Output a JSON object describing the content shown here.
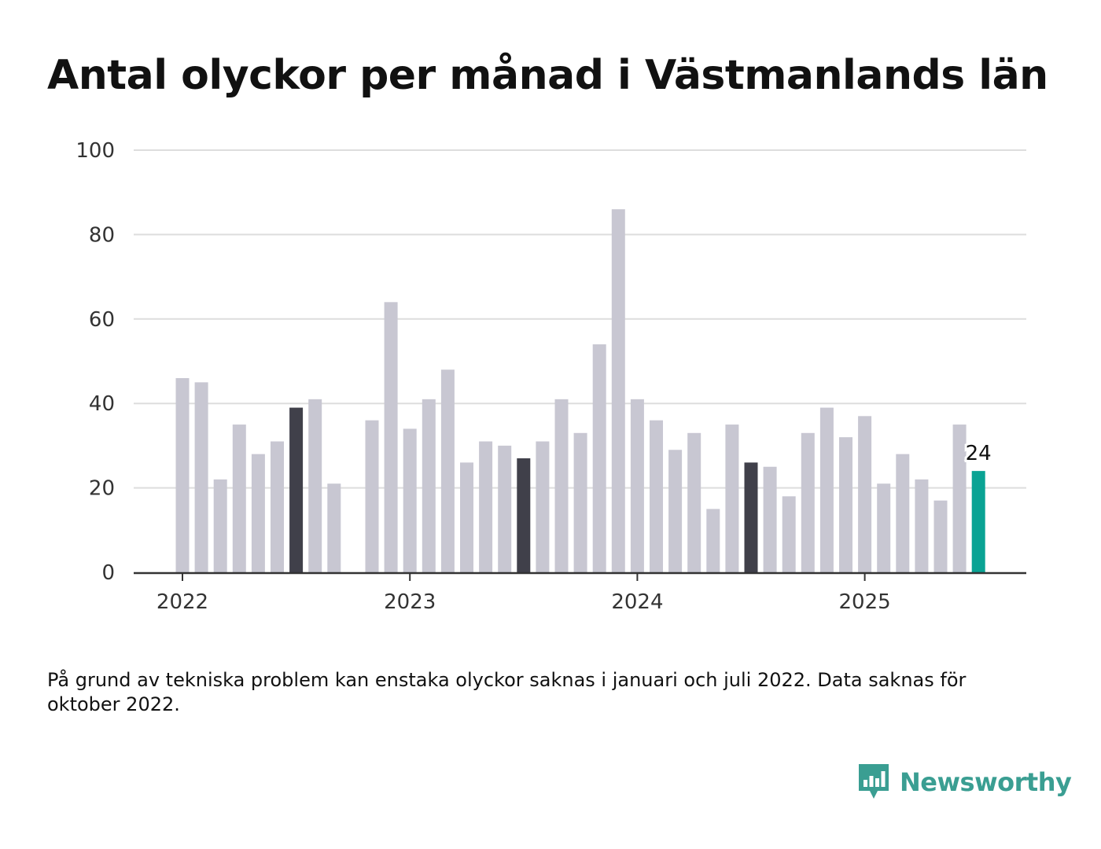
{
  "title": "Antal olyckor per månad i Västmanlands län",
  "footnote": "På grund av tekniska problem kan enstaka olyckor saknas i januari och juli 2022. Data saknas för oktober 2022.",
  "brand": {
    "name": "Newsworthy",
    "icon": "newsworthy-logo-icon"
  },
  "colors": {
    "bar": "#c8c7d2",
    "highlight": "#40404a",
    "latest": "#0aa394",
    "grid": "#dddddd",
    "axis": "#333333",
    "brand": "#3a9e92"
  },
  "chart_data": {
    "type": "bar",
    "title": "Antal olyckor per månad i Västmanlands län",
    "xlabel": "",
    "ylabel": "",
    "ylim": [
      0,
      100
    ],
    "yticks": [
      "0",
      "20",
      "40",
      "60",
      "80",
      "100"
    ],
    "xticks": [
      {
        "label": "2022",
        "date": "2022-01"
      },
      {
        "label": "2023",
        "date": "2023-01"
      },
      {
        "label": "2024",
        "date": "2024-01"
      },
      {
        "label": "2025",
        "date": "2025-01"
      }
    ],
    "grid": true,
    "categories": [
      "2022-01",
      "2022-02",
      "2022-03",
      "2022-04",
      "2022-05",
      "2022-06",
      "2022-07",
      "2022-08",
      "2022-09",
      "2022-10",
      "2022-11",
      "2022-12",
      "2023-01",
      "2023-02",
      "2023-03",
      "2023-04",
      "2023-05",
      "2023-06",
      "2023-07",
      "2023-08",
      "2023-09",
      "2023-10",
      "2023-11",
      "2023-12",
      "2024-01",
      "2024-02",
      "2024-03",
      "2024-04",
      "2024-05",
      "2024-06",
      "2024-07",
      "2024-08",
      "2024-09",
      "2024-10",
      "2024-11",
      "2024-12",
      "2025-01",
      "2025-02",
      "2025-03",
      "2025-04",
      "2025-05",
      "2025-06",
      "2025-07"
    ],
    "values": [
      46,
      45,
      22,
      35,
      28,
      31,
      39,
      41,
      21,
      null,
      36,
      64,
      34,
      41,
      48,
      26,
      31,
      30,
      27,
      31,
      41,
      33,
      54,
      86,
      41,
      36,
      29,
      33,
      15,
      35,
      26,
      25,
      18,
      33,
      39,
      32,
      37,
      21,
      28,
      22,
      17,
      35,
      24
    ],
    "highlighted": [
      "2022-07",
      "2023-07",
      "2024-07"
    ],
    "latest": "2025-07",
    "annotations": [
      {
        "category": "2025-07",
        "text": "24"
      }
    ]
  }
}
